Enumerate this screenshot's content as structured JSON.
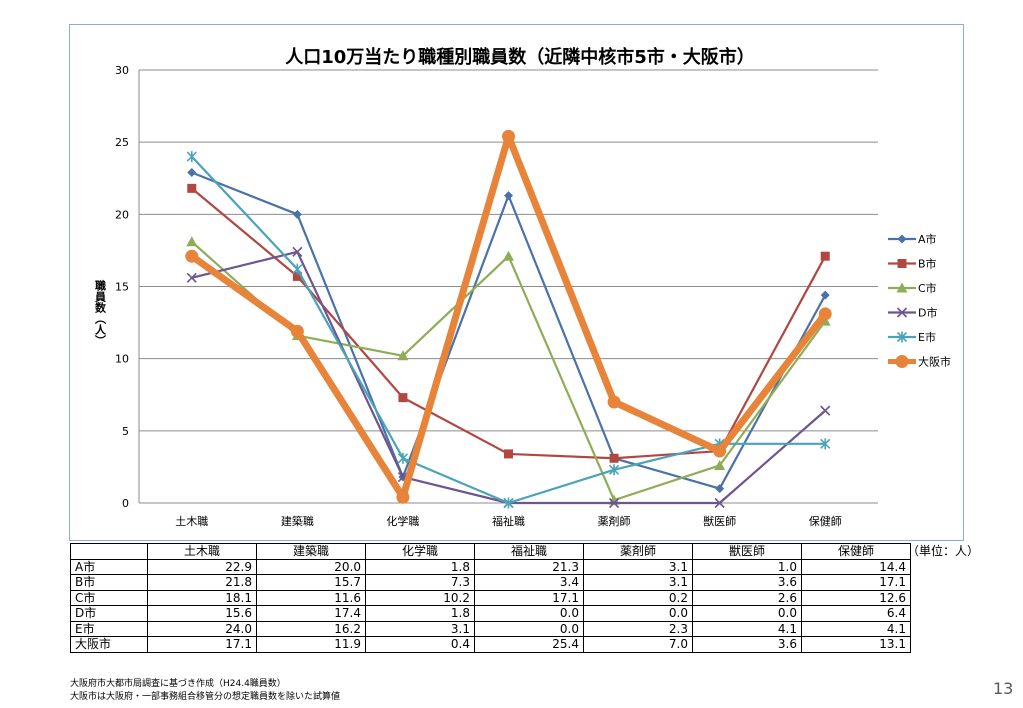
{
  "chart_data": {
    "type": "line",
    "title": "人口10万当たり職種別職員数（近隣中核市5市・大阪市）",
    "ylabel": "職員数（人）",
    "ylim": [
      0,
      30
    ],
    "yticks": [
      0,
      5,
      10,
      15,
      20,
      25,
      30
    ],
    "grid": true,
    "legend_position": "right",
    "categories": [
      "土木職",
      "建築職",
      "化学職",
      "福祉職",
      "薬剤師",
      "獣医師",
      "保健師"
    ],
    "series": [
      {
        "name": "A市",
        "color": "#4a72a8",
        "marker": "diamond",
        "values": [
          22.9,
          20.0,
          1.8,
          21.3,
          3.1,
          1.0,
          14.4
        ]
      },
      {
        "name": "B市",
        "color": "#b24742",
        "marker": "square",
        "values": [
          21.8,
          15.7,
          7.3,
          3.4,
          3.1,
          3.6,
          17.1
        ]
      },
      {
        "name": "C市",
        "color": "#8fad57",
        "marker": "triangle",
        "values": [
          18.1,
          11.6,
          10.2,
          17.1,
          0.2,
          2.6,
          12.6
        ]
      },
      {
        "name": "D市",
        "color": "#6d5590",
        "marker": "x",
        "values": [
          15.6,
          17.4,
          1.8,
          0.0,
          0.0,
          0.0,
          6.4
        ]
      },
      {
        "name": "E市",
        "color": "#4aa3b8",
        "marker": "star",
        "values": [
          24.0,
          16.2,
          3.1,
          0.0,
          2.3,
          4.1,
          4.1
        ]
      },
      {
        "name": "大阪市",
        "color": "#e8843a",
        "marker": "circle",
        "emphasis": true,
        "values": [
          17.1,
          11.9,
          0.4,
          25.4,
          7.0,
          3.6,
          13.1
        ]
      }
    ]
  },
  "table": {
    "unit": "（単位：人）",
    "headers": [
      "土木職",
      "建築職",
      "化学職",
      "福祉職",
      "薬剤師",
      "獣医師",
      "保健師"
    ],
    "rows": [
      {
        "label": "A市",
        "cells": [
          "22.9",
          "20.0",
          "1.8",
          "21.3",
          "3.1",
          "1.0",
          "14.4"
        ]
      },
      {
        "label": "B市",
        "cells": [
          "21.8",
          "15.7",
          "7.3",
          "3.4",
          "3.1",
          "3.6",
          "17.1"
        ]
      },
      {
        "label": "C市",
        "cells": [
          "18.1",
          "11.6",
          "10.2",
          "17.1",
          "0.2",
          "2.6",
          "12.6"
        ]
      },
      {
        "label": "D市",
        "cells": [
          "15.6",
          "17.4",
          "1.8",
          "0.0",
          "0.0",
          "0.0",
          "6.4"
        ]
      },
      {
        "label": "E市",
        "cells": [
          "24.0",
          "16.2",
          "3.1",
          "0.0",
          "2.3",
          "4.1",
          "4.1"
        ]
      },
      {
        "label": "大阪市",
        "cells": [
          "17.1",
          "11.9",
          "0.4",
          "25.4",
          "7.0",
          "3.6",
          "13.1"
        ]
      }
    ]
  },
  "notes": [
    "大阪府市大都市局調査に基づき作成（H24.4職員数）",
    "大阪市は大阪府・一部事務組合移管分の想定職員数を除いた試算値"
  ],
  "page_number": "13"
}
